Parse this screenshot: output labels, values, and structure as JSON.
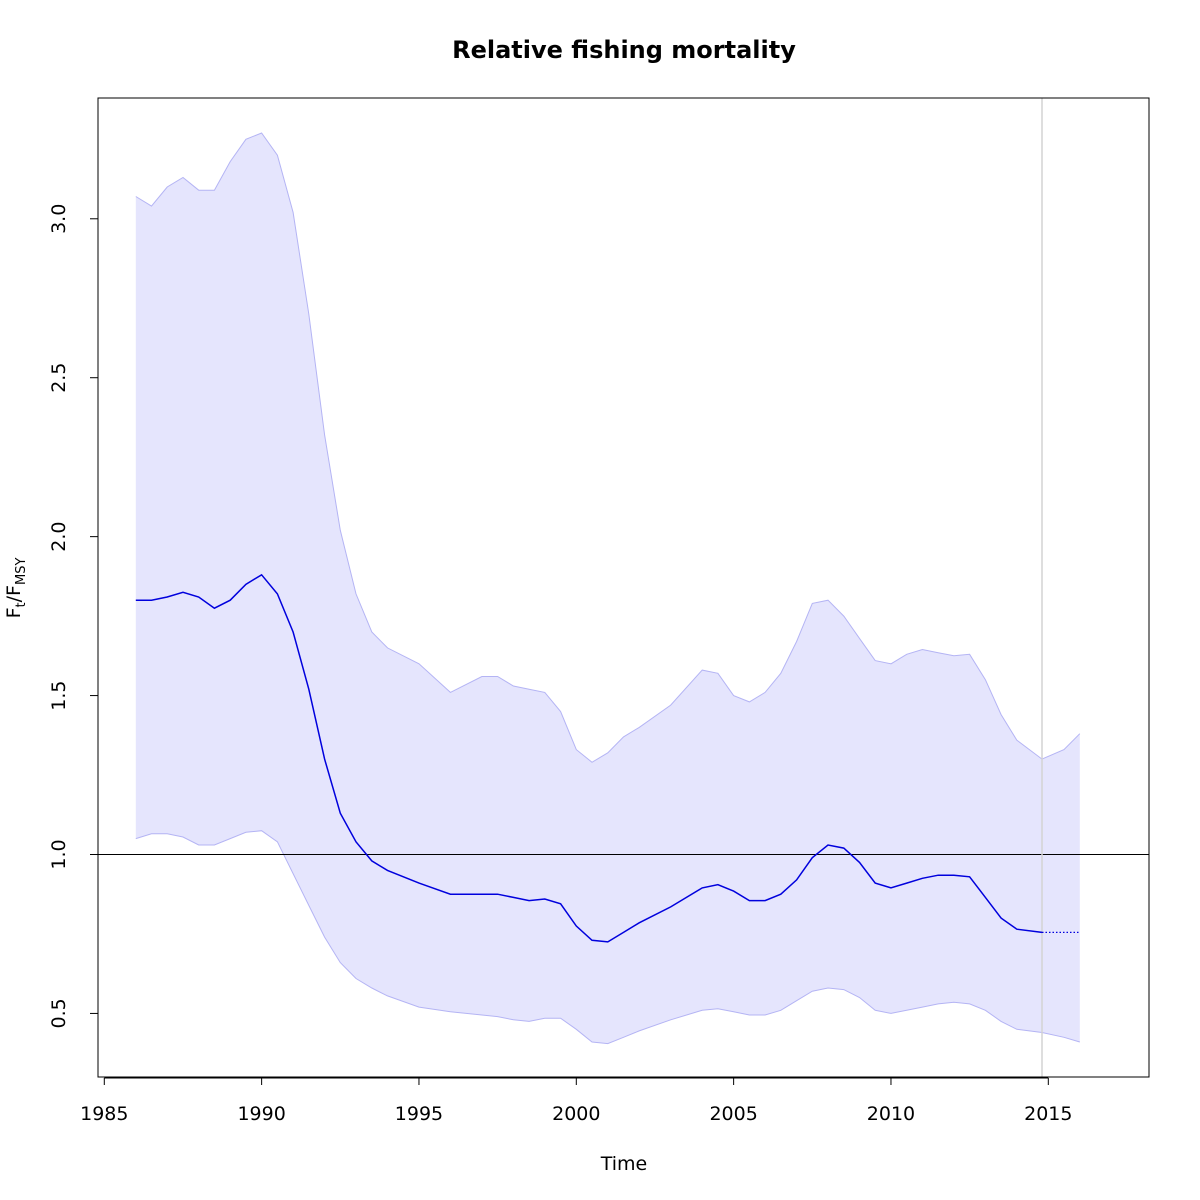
{
  "chart_data": {
    "type": "line",
    "title": "Relative fishing mortality",
    "xlabel": "Time",
    "ylabel": {
      "main": "F",
      "sub1": "t",
      "slash": "/",
      "main2": "F",
      "sub2": "MSY"
    },
    "xlim": [
      1984.8,
      2018.2
    ],
    "ylim": [
      0.3,
      3.38
    ],
    "x_ticks": [
      1985,
      1990,
      1995,
      2000,
      2005,
      2010,
      2015
    ],
    "x_tick_labels": [
      "1985",
      "1990",
      "1995",
      "2000",
      "2005",
      "2010",
      "2015"
    ],
    "y_ticks": [
      0.5,
      1.0,
      1.5,
      2.0,
      2.5,
      3.0
    ],
    "y_tick_labels": [
      "0.5",
      "1.0",
      "1.5",
      "2.0",
      "2.5",
      "3.0"
    ],
    "reference_hline": 1.0,
    "reference_vline": 2014.8,
    "grid": false,
    "legend": "none",
    "colors": {
      "line": "#0000dd",
      "band_fill": "#e5e5fd",
      "band_edge": "#b4b4f4",
      "hline": "#000000",
      "vline": "#d3d3d3"
    },
    "series": [
      {
        "role": "estimate",
        "x": [
          1986,
          1986.5,
          1987,
          1987.5,
          1988,
          1988.5,
          1989,
          1989.5,
          1990,
          1990.5,
          1991,
          1991.5,
          1992,
          1992.5,
          1993,
          1993.5,
          1994,
          1995,
          1996,
          1997,
          1997.5,
          1998,
          1998.5,
          1999,
          1999.5,
          2000,
          2000.5,
          2001,
          2001.5,
          2002,
          2003,
          2004,
          2004.5,
          2005,
          2005.5,
          2006,
          2006.5,
          2007,
          2007.5,
          2008,
          2008.5,
          2009,
          2009.5,
          2010,
          2010.5,
          2011,
          2011.5,
          2012,
          2012.5,
          2013,
          2013.5,
          2014,
          2014.8
        ],
        "y": [
          1.8,
          1.8,
          1.81,
          1.825,
          1.81,
          1.775,
          1.8,
          1.85,
          1.88,
          1.82,
          1.7,
          1.52,
          1.3,
          1.13,
          1.04,
          0.98,
          0.95,
          0.91,
          0.875,
          0.875,
          0.875,
          0.865,
          0.855,
          0.86,
          0.845,
          0.775,
          0.73,
          0.725,
          0.755,
          0.785,
          0.835,
          0.895,
          0.905,
          0.885,
          0.855,
          0.855,
          0.875,
          0.92,
          0.99,
          1.03,
          1.02,
          0.975,
          0.91,
          0.895,
          0.91,
          0.925,
          0.935,
          0.935,
          0.93,
          0.865,
          0.8,
          0.765,
          0.755
        ]
      },
      {
        "role": "prediction",
        "x": [
          2014.8,
          2016
        ],
        "y": [
          0.755,
          0.755
        ]
      },
      {
        "role": "upper_ci",
        "x": [
          1986,
          1986.5,
          1987,
          1987.5,
          1988,
          1988.5,
          1989,
          1989.5,
          1990,
          1990.5,
          1991,
          1991.5,
          1992,
          1992.5,
          1993,
          1993.5,
          1994,
          1995,
          1996,
          1997,
          1997.5,
          1998,
          1998.5,
          1999,
          1999.5,
          2000,
          2000.5,
          2001,
          2001.5,
          2002,
          2003,
          2004,
          2004.5,
          2005,
          2005.5,
          2006,
          2006.5,
          2007,
          2007.5,
          2008,
          2008.5,
          2009,
          2009.5,
          2010,
          2010.5,
          2011,
          2011.5,
          2012,
          2012.5,
          2013,
          2013.5,
          2014,
          2014.8,
          2015.5,
          2016
        ],
        "y": [
          3.07,
          3.04,
          3.1,
          3.13,
          3.09,
          3.09,
          3.18,
          3.25,
          3.27,
          3.2,
          3.02,
          2.7,
          2.32,
          2.02,
          1.82,
          1.7,
          1.65,
          1.6,
          1.51,
          1.56,
          1.56,
          1.53,
          1.52,
          1.51,
          1.45,
          1.33,
          1.29,
          1.32,
          1.37,
          1.4,
          1.47,
          1.58,
          1.57,
          1.5,
          1.48,
          1.51,
          1.57,
          1.67,
          1.79,
          1.8,
          1.75,
          1.68,
          1.61,
          1.6,
          1.63,
          1.645,
          1.635,
          1.625,
          1.63,
          1.55,
          1.44,
          1.36,
          1.3,
          1.33,
          1.38
        ]
      },
      {
        "role": "lower_ci",
        "x": [
          1986,
          1986.5,
          1987,
          1987.5,
          1988,
          1988.5,
          1989,
          1989.5,
          1990,
          1990.5,
          1991,
          1991.5,
          1992,
          1992.5,
          1993,
          1993.5,
          1994,
          1995,
          1996,
          1997,
          1997.5,
          1998,
          1998.5,
          1999,
          1999.5,
          2000,
          2000.5,
          2001,
          2001.5,
          2002,
          2003,
          2004,
          2004.5,
          2005,
          2005.5,
          2006,
          2006.5,
          2007,
          2007.5,
          2008,
          2008.5,
          2009,
          2009.5,
          2010,
          2010.5,
          2011,
          2011.5,
          2012,
          2012.5,
          2013,
          2013.5,
          2014,
          2014.8,
          2015.5,
          2016
        ],
        "y": [
          1.05,
          1.065,
          1.065,
          1.055,
          1.03,
          1.03,
          1.05,
          1.07,
          1.075,
          1.04,
          0.94,
          0.84,
          0.74,
          0.66,
          0.61,
          0.58,
          0.555,
          0.52,
          0.505,
          0.495,
          0.49,
          0.48,
          0.475,
          0.485,
          0.485,
          0.45,
          0.41,
          0.405,
          0.425,
          0.445,
          0.48,
          0.51,
          0.515,
          0.505,
          0.495,
          0.495,
          0.51,
          0.54,
          0.57,
          0.58,
          0.575,
          0.55,
          0.51,
          0.5,
          0.51,
          0.52,
          0.53,
          0.535,
          0.53,
          0.51,
          0.475,
          0.45,
          0.44,
          0.425,
          0.41
        ]
      }
    ]
  }
}
